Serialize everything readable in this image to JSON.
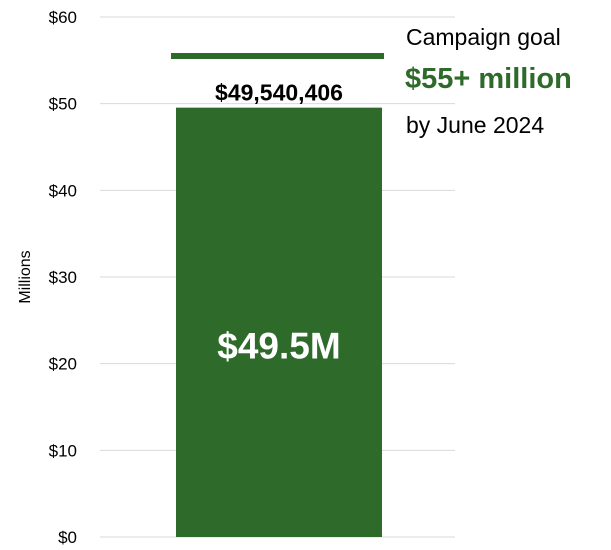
{
  "chart_data": {
    "type": "bar",
    "categories": [
      ""
    ],
    "values": [
      49.540406
    ],
    "ylabel": "Millions",
    "ylim": [
      0,
      60
    ],
    "yticks": [
      0,
      10,
      20,
      30,
      40,
      50,
      60
    ],
    "ytick_labels": [
      "$0",
      "$10",
      "$20",
      "$30",
      "$40",
      "$50",
      "$60"
    ],
    "grid": true,
    "data_label_top": "$49,540,406",
    "data_label_inside": "$49.5M",
    "goal": {
      "value": 55.5,
      "line1": "Campaign goal",
      "line2": "$55+ million",
      "line3": "by June 2024"
    },
    "colors": {
      "bar": "#2e6b2b",
      "goal_line": "#2e6b2b",
      "goal_text": "#2e6b2b",
      "grid": "#d9d9d9"
    }
  }
}
